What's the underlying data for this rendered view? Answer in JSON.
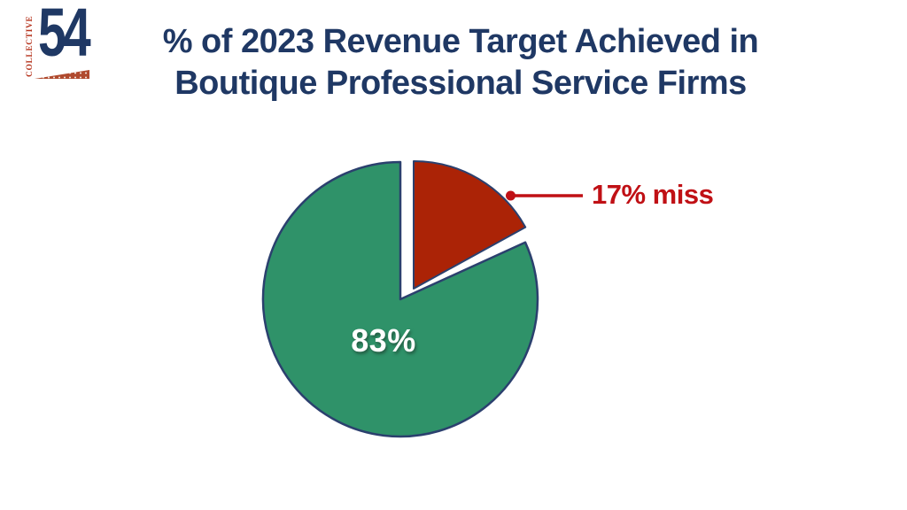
{
  "logo": {
    "vertical_text": "COLLECTIVE",
    "number": "54"
  },
  "title": {
    "line1": "% of 2023 Revenue Target Achieved in",
    "line2": "Boutique Professional Service Firms"
  },
  "callout": {
    "label": "17% miss",
    "color": "#c01015"
  },
  "chart_data": {
    "type": "pie",
    "title": "% of 2023 Revenue Target Achieved in Boutique Professional Service Firms",
    "slices": [
      {
        "label": "83%",
        "value": 83,
        "color": "#2f9269",
        "exploded": false
      },
      {
        "label": "17% miss",
        "value": 17,
        "color": "#ab2306",
        "exploded": true
      }
    ],
    "inner_label": {
      "text": "83%",
      "color": "#ffffff"
    },
    "outline_color": "#2b406e",
    "background": "#ffffff",
    "legend_position": "none"
  },
  "colors": {
    "title_navy": "#1f3864",
    "logo_red": "#b5331d",
    "logo_navy": "#1f3864",
    "swoosh_rust": "#b04a2e"
  }
}
